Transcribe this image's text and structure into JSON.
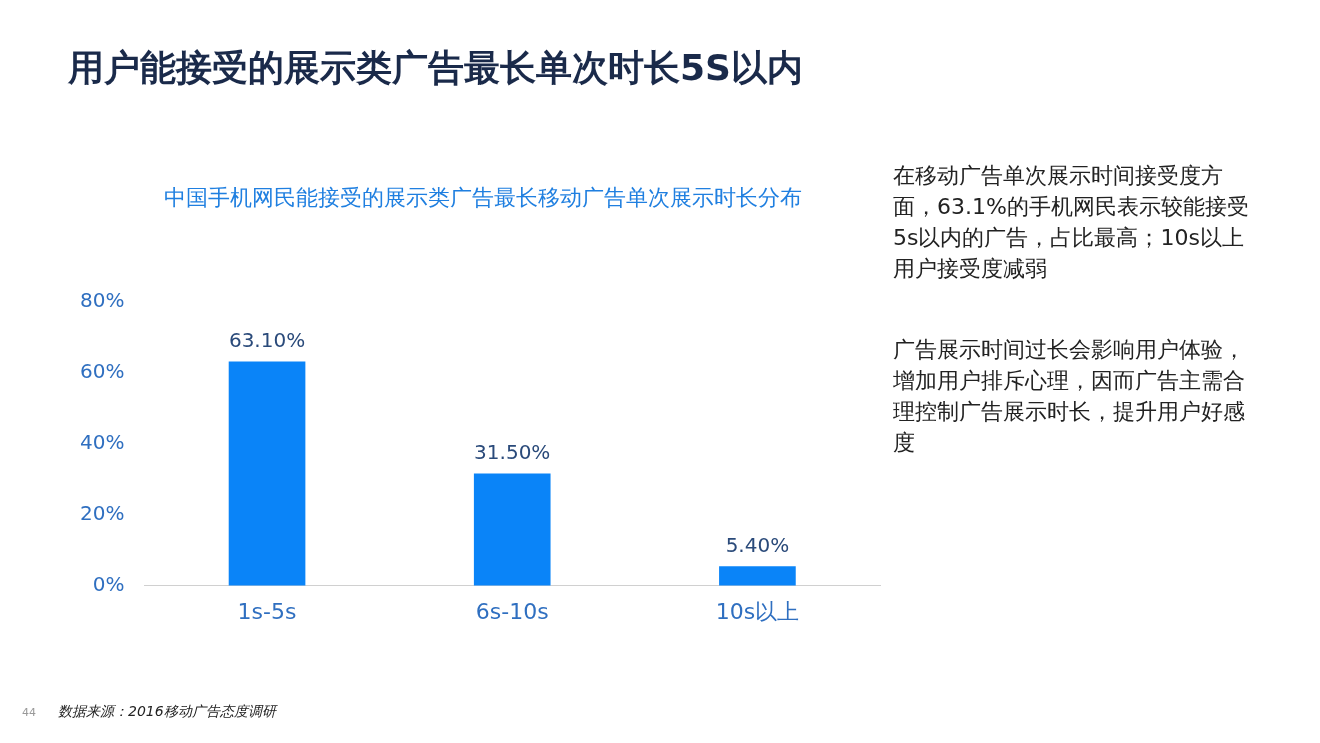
{
  "chart_data": {
    "type": "bar",
    "title": "用户能接受的展示类广告最长单次时长5S以内",
    "subtitle": "中国手机网民能接受的展示类广告最长移动广告单次展示时长分布",
    "categories": [
      "1s-5s",
      "6s-10s",
      "10s以上"
    ],
    "values": [
      63.1,
      31.5,
      5.4
    ],
    "color": "#0a84f8",
    "value_labels": [
      "63.10%",
      "31.50%",
      "5.40%"
    ],
    "ylim": [
      0,
      80
    ],
    "yticks": [
      {
        "value": 0,
        "label": "0%"
      },
      {
        "value": 20,
        "label": "20%"
      },
      {
        "value": 40,
        "label": "40%"
      },
      {
        "value": 60,
        "label": "60%"
      },
      {
        "value": 80,
        "label": "80%"
      }
    ],
    "grid": false,
    "legend": false,
    "annotations": [
      "在移动广告单次展示时间接受度方面，63.1%的手机网民表示较能接受5s以内的广告，占比最高；10s以上用户接受度减弱",
      "广告展示时间过长会影响用户体验，增加用户排斥心理，因而广告主需合理控制广告展示时长，提升用户好感度",
      "数据来源：2016移动广告态度调研",
      "44"
    ]
  }
}
